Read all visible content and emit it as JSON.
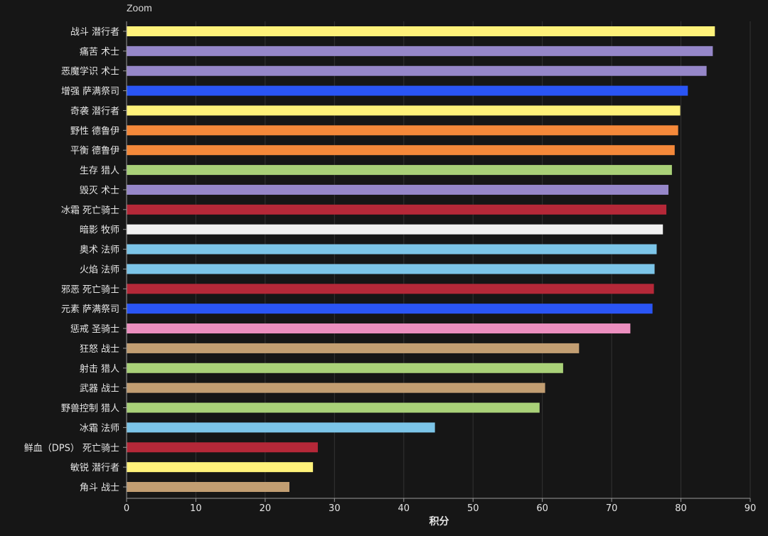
{
  "zoom_label": "Zoom",
  "chart_data": {
    "type": "bar",
    "orientation": "horizontal",
    "title": "",
    "xlabel": "积分",
    "ylabel": "",
    "xlim": [
      0,
      90
    ],
    "x_ticks": [
      0,
      10,
      20,
      30,
      40,
      50,
      60,
      70,
      80,
      90
    ],
    "grid": true,
    "legend": "none",
    "categories": [
      "战斗 潜行者",
      "痛苦 术士",
      "恶魔学识 术士",
      "增强 萨满祭司",
      "奇袭 潜行者",
      "野性 德鲁伊",
      "平衡 德鲁伊",
      "生存 猎人",
      "毁灭 术士",
      "冰霜 死亡骑士",
      "暗影 牧师",
      "奥术 法师",
      "火焰 法师",
      "邪恶 死亡骑士",
      "元素 萨满祭司",
      "惩戒 圣骑士",
      "狂怒 战士",
      "射击 猎人",
      "武器 战士",
      "野兽控制 猎人",
      "冰霜 法师",
      "鲜血（DPS） 死亡骑士",
      "敏锐 潜行者",
      "角斗 战士"
    ],
    "values": [
      84.9,
      84.6,
      83.7,
      81.0,
      79.9,
      79.6,
      79.1,
      78.7,
      78.2,
      77.9,
      77.4,
      76.5,
      76.2,
      76.1,
      75.9,
      72.7,
      65.3,
      63.0,
      60.4,
      59.6,
      44.5,
      27.6,
      26.9,
      23.5
    ],
    "colors": [
      "#fff27a",
      "#9687c9",
      "#9687c9",
      "#2a55f5",
      "#fff27a",
      "#f5893a",
      "#f5893a",
      "#a9d178",
      "#9687c9",
      "#b52838",
      "#f1f1f1",
      "#7cc5e8",
      "#7cc5e8",
      "#b52838",
      "#2a55f5",
      "#ec8fbf",
      "#c29e72",
      "#a9d178",
      "#c29e72",
      "#a9d178",
      "#7cc5e8",
      "#b52838",
      "#fff27a",
      "#c29e72"
    ]
  }
}
